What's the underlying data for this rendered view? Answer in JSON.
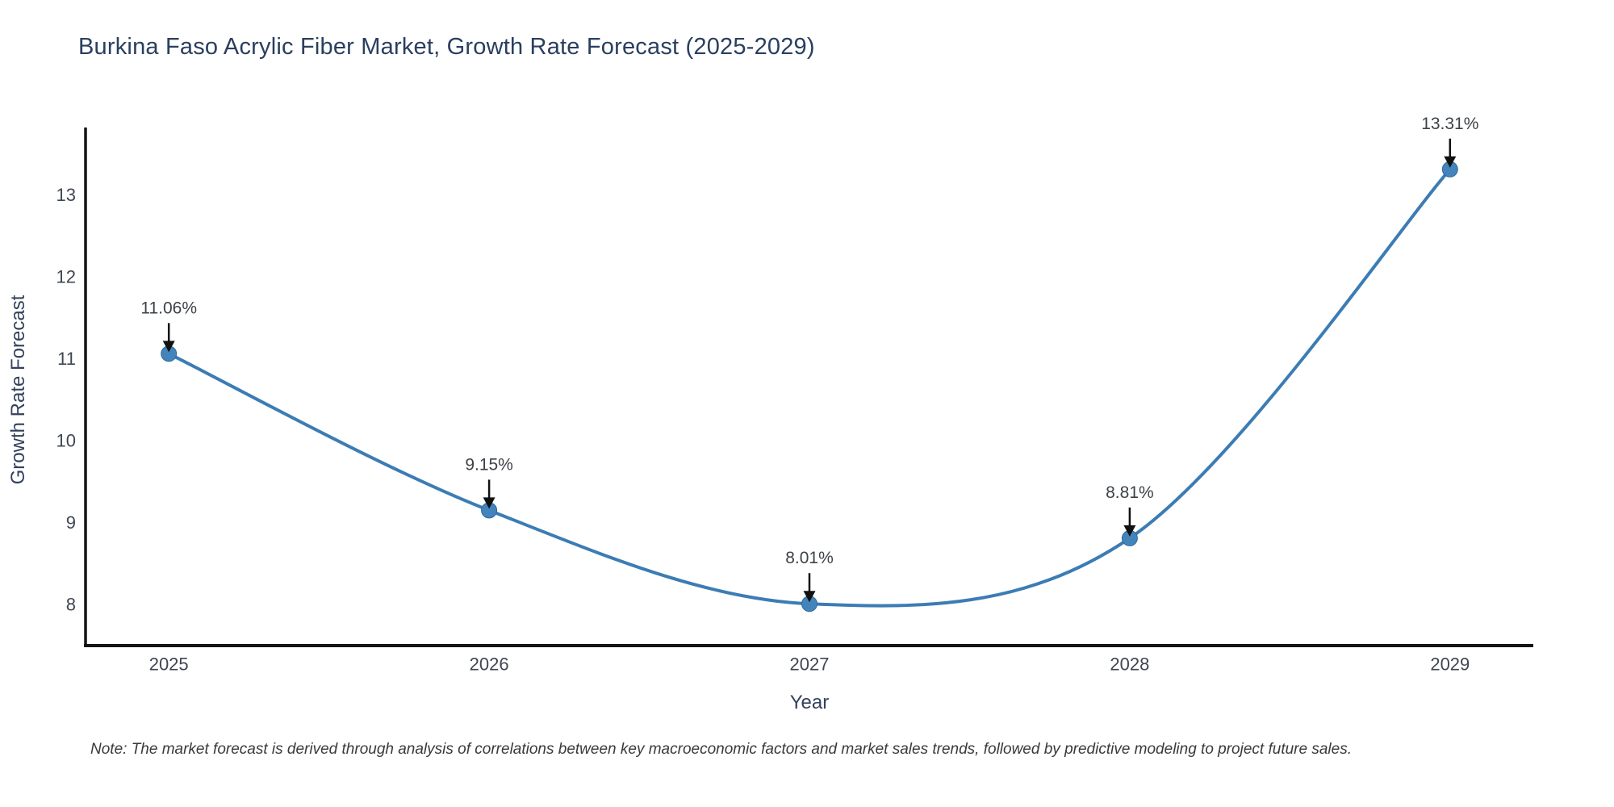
{
  "title": "Burkina Faso Acrylic Fiber Market, Growth Rate Forecast (2025-2029)",
  "note": "Note: The market forecast is derived through analysis of correlations between key macroeconomic factors and market sales trends, followed by predictive modeling to project future sales.",
  "chart_data": {
    "type": "line",
    "line_shape": "spline",
    "title": "Burkina Faso Acrylic Fiber Market, Growth Rate Forecast (2025-2029)",
    "xlabel": "Year",
    "ylabel": "Growth Rate Forecast",
    "x": [
      2025,
      2026,
      2027,
      2028,
      2029
    ],
    "values": [
      11.06,
      9.15,
      8.01,
      8.81,
      13.31
    ],
    "point_labels": [
      "11.06%",
      "9.15%",
      "8.01%",
      "8.81%",
      "13.31%"
    ],
    "xticks": [
      2025,
      2026,
      2027,
      2028,
      2029
    ],
    "yticks": [
      8,
      9,
      10,
      11,
      12,
      13
    ],
    "xlim": [
      2024.74,
      2029.26
    ],
    "ylim": [
      7.5,
      13.8
    ],
    "grid": false,
    "legend": false,
    "colors": {
      "line": "#3c7cb4",
      "marker_fill": "#4484bd",
      "marker_edge": "#31699c",
      "axis": "#141414",
      "tick_label": "#3f4652",
      "axis_title": "#33415c",
      "annotation_text": "#3d4247",
      "arrow": "#111111",
      "title_color": "#2a3f5f",
      "background": "#ffffff"
    }
  }
}
